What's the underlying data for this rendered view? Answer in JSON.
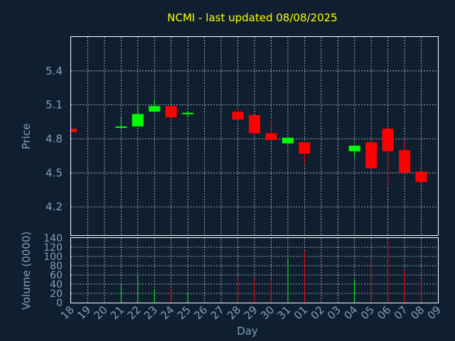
{
  "chart_data": {
    "title": "NCMI - last updated 08/08/2025",
    "colors": {
      "background": "#0f1f30",
      "up": "#00ff00",
      "down": "#ff0000",
      "title": "#ffff00",
      "axis": "#7f9fbf"
    },
    "price": {
      "type": "candlestick",
      "ylabel": "Price",
      "ylim": [
        3.95,
        5.7
      ],
      "yticks": [
        "4.2",
        "4.5",
        "4.8",
        "5.1",
        "5.4"
      ],
      "grid": true
    },
    "volume": {
      "type": "bar",
      "ylabel": "Volume (0000)",
      "ylim": [
        0,
        140
      ],
      "yticks": [
        "0",
        "20",
        "40",
        "60",
        "80",
        "100",
        "120",
        "140"
      ],
      "grid": true
    },
    "xlabel": "Day",
    "days": [
      "18",
      "19",
      "20",
      "21",
      "22",
      "23",
      "24",
      "25",
      "26",
      "27",
      "28",
      "29",
      "30",
      "31",
      "01",
      "02",
      "03",
      "04",
      "05",
      "06",
      "07",
      "08",
      "09"
    ],
    "candles": [
      {
        "day": "18",
        "open": 4.89,
        "high": 4.89,
        "low": 4.86,
        "close": 4.86,
        "volume": 0
      },
      {
        "day": "21",
        "open": 4.91,
        "high": 4.99,
        "low": 4.88,
        "close": 4.91,
        "volume": 38
      },
      {
        "day": "22",
        "open": 4.91,
        "high": 5.1,
        "low": 4.91,
        "close": 5.02,
        "volume": 58
      },
      {
        "day": "23",
        "open": 5.04,
        "high": 5.14,
        "low": 5.04,
        "close": 5.09,
        "volume": 28
      },
      {
        "day": "24",
        "open": 5.09,
        "high": 5.09,
        "low": 4.99,
        "close": 4.99,
        "volume": 30
      },
      {
        "day": "25",
        "open": 5.02,
        "high": 5.04,
        "low": 4.99,
        "close": 5.03,
        "volume": 22
      },
      {
        "day": "28",
        "open": 5.04,
        "high": 5.07,
        "low": 4.97,
        "close": 4.97,
        "volume": 55
      },
      {
        "day": "29",
        "open": 5.01,
        "high": 5.01,
        "low": 4.84,
        "close": 4.85,
        "volume": 52
      },
      {
        "day": "30",
        "open": 4.85,
        "high": 4.97,
        "low": 4.79,
        "close": 4.79,
        "volume": 52
      },
      {
        "day": "31",
        "open": 4.76,
        "high": 4.82,
        "low": 4.74,
        "close": 4.81,
        "volume": 97
      },
      {
        "day": "01",
        "open": 4.77,
        "high": 4.77,
        "low": 4.58,
        "close": 4.67,
        "volume": 113
      },
      {
        "day": "04",
        "open": 4.69,
        "high": 4.74,
        "low": 4.63,
        "close": 4.74,
        "volume": 50
      },
      {
        "day": "05",
        "open": 4.77,
        "high": 4.79,
        "low": 4.54,
        "close": 4.54,
        "volume": 93
      },
      {
        "day": "06",
        "open": 4.89,
        "high": 4.89,
        "low": 4.37,
        "close": 4.69,
        "volume": 135
      },
      {
        "day": "07",
        "open": 4.7,
        "high": 4.78,
        "low": 4.5,
        "close": 4.5,
        "volume": 70
      },
      {
        "day": "08",
        "open": 4.51,
        "high": 4.51,
        "low": 4.42,
        "close": 4.42,
        "volume": 50
      }
    ]
  }
}
